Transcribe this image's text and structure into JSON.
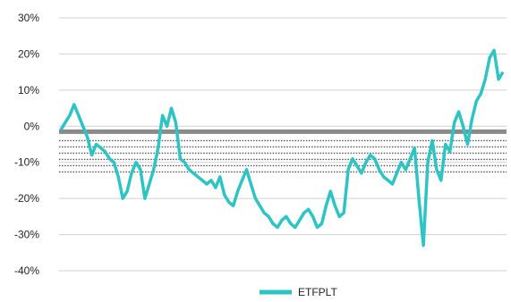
{
  "chart_data": {
    "type": "line",
    "title": "",
    "xlabel": "",
    "ylabel": "",
    "ylim": [
      -40,
      30
    ],
    "y_tick_labels": [
      "30%",
      "20%",
      "10%",
      "0%",
      "-10%",
      "-20%",
      "-30%",
      "-40%"
    ],
    "y_ticks": [
      30,
      20,
      10,
      0,
      -10,
      -20,
      -30,
      -40
    ],
    "grid": "horizontal",
    "legend_position": "bottom",
    "x_tick_labels_note": "dense rotated date labels clustered around the 0% line; individual labels are not legible",
    "series": [
      {
        "name": "ETFPLT",
        "color": "#2ec4c4",
        "x_index": [
          0,
          10,
          20,
          30,
          40,
          50,
          60,
          70,
          80,
          90,
          100,
          110,
          120,
          130,
          140,
          150,
          160,
          170,
          180,
          190,
          200,
          210,
          220,
          230,
          240,
          250,
          260,
          270,
          280,
          290,
          300,
          310,
          320,
          330,
          340,
          350,
          360,
          370,
          380,
          390,
          400,
          410,
          420,
          430,
          440,
          450,
          460,
          470,
          480,
          490,
          500,
          510,
          520,
          530,
          540,
          550,
          560,
          570,
          580,
          590,
          600,
          610,
          620,
          630,
          640,
          650,
          660,
          670,
          680,
          690,
          700,
          710,
          720,
          730,
          740,
          750,
          760,
          770,
          780,
          790,
          800,
          810,
          820,
          830,
          840,
          850,
          860,
          870,
          880,
          890,
          900,
          910,
          920,
          930,
          940,
          950,
          960,
          970,
          980,
          990,
          1000
        ],
        "values": [
          -1,
          1,
          3,
          6,
          3,
          0,
          -3,
          -8,
          -5,
          -6,
          -7,
          -9,
          -10,
          -14,
          -20,
          -18,
          -13,
          -10,
          -12,
          -20,
          -16,
          -12,
          -6,
          3,
          0,
          5,
          1,
          -9,
          -10,
          -12,
          -13,
          -14,
          -15,
          -16,
          -15,
          -17,
          -14,
          -19,
          -21,
          -22,
          -18,
          -15,
          -12,
          -16,
          -20,
          -22,
          -24,
          -25,
          -27,
          -28,
          -26,
          -25,
          -27,
          -28,
          -26,
          -24,
          -23,
          -25,
          -28,
          -27,
          -22,
          -18,
          -22,
          -25,
          -24,
          -12,
          -9,
          -11,
          -13,
          -10,
          -8,
          -9,
          -12,
          -14,
          -15,
          -16,
          -13,
          -10,
          -12,
          -9,
          -6,
          -20,
          -33,
          -10,
          -4,
          -12,
          -15,
          -5,
          -7,
          1,
          4,
          0,
          -5,
          2,
          7,
          9,
          13,
          19,
          21,
          13,
          15
        ]
      }
    ]
  }
}
